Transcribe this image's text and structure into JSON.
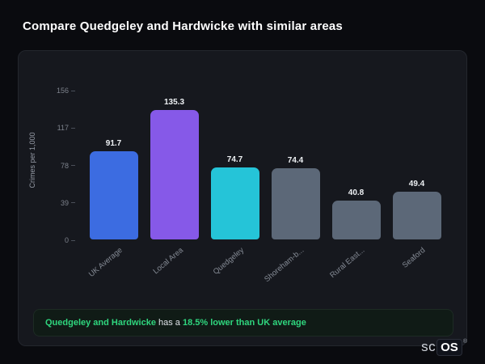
{
  "page": {
    "title": "Compare Quedgeley and Hardwicke with similar areas"
  },
  "chart_data": {
    "type": "bar",
    "title": "Compare Quedgeley and Hardwicke with similar areas",
    "xlabel": "",
    "ylabel": "Crimes per 1,000",
    "ylim": [
      0,
      156
    ],
    "yticks": [
      156,
      117,
      78,
      39,
      0
    ],
    "grid": false,
    "legend": false,
    "categories": [
      "UK Average",
      "Local Area",
      "Quedgeley",
      "Shoreham-b...",
      "Rural East...",
      "Seaford"
    ],
    "values": [
      91.7,
      135.3,
      74.7,
      74.4,
      40.8,
      49.4
    ],
    "bar_colors": [
      "#3c6ce1",
      "#8659e8",
      "#25c4d8",
      "#5c6878",
      "#5c6878",
      "#5c6878"
    ]
  },
  "callout": {
    "highlight1": "Quedgeley and Hardwicke",
    "middle": "has a",
    "highlight2": "18.5% lower than UK average",
    "accent_color": "#2fd67e"
  },
  "logo": {
    "prefix": "sc",
    "suffix": "OS",
    "registered": "®"
  }
}
